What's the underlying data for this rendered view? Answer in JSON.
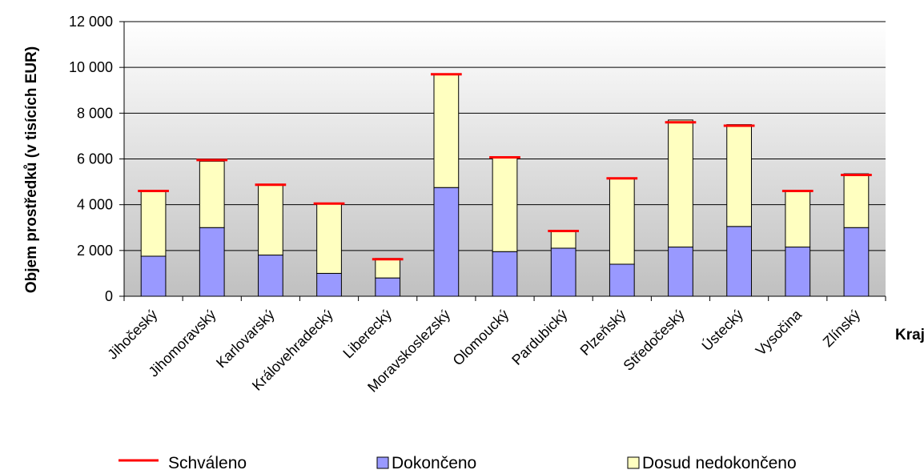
{
  "chart_data": {
    "type": "bar",
    "stacked": true,
    "title": "",
    "xlabel": "Kraj",
    "ylabel": "Objem prostředků (v  tisících EUR)",
    "ylim": [
      0,
      12000
    ],
    "yticks": [
      0,
      2000,
      4000,
      6000,
      8000,
      10000,
      12000
    ],
    "ytick_labels": [
      "0",
      "2 000",
      "4 000",
      "6 000",
      "8 000",
      "10 000",
      "12 000"
    ],
    "categories": [
      "Jihočeský",
      "Jihomoravský",
      "Karlovarský",
      "Královehradecký",
      "Liberecký",
      "Moravskoslezský",
      "Olomoucký",
      "Pardubický",
      "Plzeňský",
      "Středočeský",
      "Ústecký",
      "Vysočina",
      "Zlínský"
    ],
    "series": [
      {
        "name": "Dokončeno",
        "color": "#9999ff",
        "values": [
          1750,
          3000,
          1800,
          1000,
          800,
          4750,
          1950,
          2100,
          1400,
          2150,
          3050,
          2150,
          3000
        ]
      },
      {
        "name": "Dosud nedokončeno",
        "color": "#ffffc0",
        "values": [
          2850,
          2900,
          3100,
          3050,
          850,
          4950,
          4100,
          750,
          3750,
          5550,
          4450,
          2450,
          2350
        ]
      }
    ],
    "lines": [
      {
        "name": "Schváleno",
        "color": "#ff0000",
        "values": [
          4600,
          5950,
          4870,
          4050,
          1620,
          9700,
          6070,
          2850,
          5150,
          7600,
          7450,
          4600,
          5300
        ]
      }
    ],
    "grid": true,
    "legend_position": "bottom"
  }
}
